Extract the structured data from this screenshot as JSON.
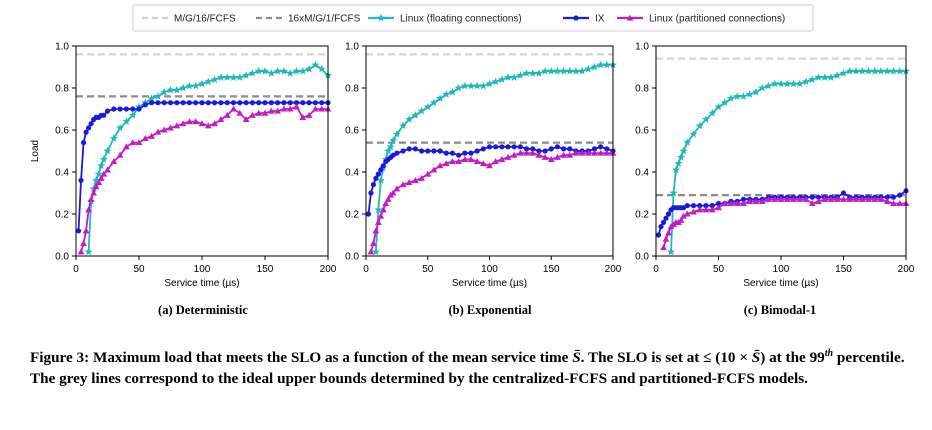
{
  "legend": [
    {
      "label": "M/G/16/FCFS",
      "color": "#d0d0d0",
      "style": "dashed",
      "marker": "none"
    },
    {
      "label": "16xM/G/1/FCFS",
      "color": "#8a8a8a",
      "style": "dashed",
      "marker": "none"
    },
    {
      "label": "Linux (floating connections)",
      "color": "#20b8b8",
      "style": "solid",
      "marker": "star"
    },
    {
      "label": "IX",
      "color": "#1a1adc",
      "style": "solid",
      "marker": "circle"
    },
    {
      "label": "Linux (partitioned connections)",
      "color": "#c41cc4",
      "style": "solid",
      "marker": "triangle"
    }
  ],
  "chart_data": [
    {
      "type": "line",
      "caption": "(a) Deterministic",
      "xlabel": "Service time (µs)",
      "ylabel": "Load",
      "xlim": [
        0,
        200
      ],
      "ylim": [
        0,
        1.0
      ],
      "xticks": [
        "0",
        "50",
        "100",
        "150",
        "200"
      ],
      "yticks": [
        "0.0",
        "0.2",
        "0.4",
        "0.6",
        "0.8",
        "1.0"
      ],
      "grid": false,
      "hlines": [
        {
          "name": "M/G/16/FCFS",
          "y": 0.96
        },
        {
          "name": "16xM/G/1/FCFS",
          "y": 0.76
        }
      ],
      "series": [
        {
          "name": "Linux (floating connections)",
          "x": [
            10,
            12,
            14,
            16,
            18,
            20,
            22,
            25,
            30,
            35,
            40,
            45,
            50,
            55,
            60,
            65,
            70,
            75,
            80,
            85,
            90,
            95,
            100,
            105,
            110,
            115,
            120,
            125,
            130,
            135,
            140,
            145,
            150,
            155,
            160,
            165,
            170,
            175,
            180,
            185,
            190,
            195,
            200
          ],
          "y": [
            0.02,
            0.26,
            0.32,
            0.36,
            0.39,
            0.43,
            0.46,
            0.5,
            0.56,
            0.61,
            0.64,
            0.67,
            0.71,
            0.73,
            0.75,
            0.76,
            0.78,
            0.79,
            0.79,
            0.8,
            0.81,
            0.81,
            0.82,
            0.83,
            0.84,
            0.85,
            0.85,
            0.85,
            0.85,
            0.86,
            0.87,
            0.88,
            0.88,
            0.87,
            0.88,
            0.88,
            0.87,
            0.88,
            0.88,
            0.89,
            0.91,
            0.89,
            0.86
          ]
        },
        {
          "name": "IX",
          "x": [
            2,
            4,
            6,
            8,
            10,
            12,
            14,
            16,
            18,
            20,
            22,
            25,
            30,
            35,
            40,
            45,
            50,
            55,
            60,
            65,
            70,
            75,
            80,
            85,
            90,
            95,
            100,
            105,
            110,
            115,
            120,
            125,
            130,
            135,
            140,
            145,
            150,
            155,
            160,
            165,
            170,
            175,
            180,
            185,
            190,
            195,
            200
          ],
          "y": [
            0.12,
            0.36,
            0.54,
            0.59,
            0.61,
            0.63,
            0.65,
            0.66,
            0.66,
            0.67,
            0.67,
            0.69,
            0.7,
            0.7,
            0.7,
            0.7,
            0.7,
            0.72,
            0.73,
            0.73,
            0.73,
            0.73,
            0.73,
            0.73,
            0.73,
            0.73,
            0.73,
            0.73,
            0.73,
            0.73,
            0.73,
            0.73,
            0.73,
            0.73,
            0.73,
            0.73,
            0.73,
            0.73,
            0.73,
            0.73,
            0.73,
            0.73,
            0.73,
            0.73,
            0.73,
            0.73,
            0.73
          ]
        },
        {
          "name": "Linux (partitioned connections)",
          "x": [
            4,
            6,
            8,
            10,
            12,
            14,
            16,
            18,
            20,
            22,
            25,
            30,
            35,
            40,
            45,
            50,
            55,
            60,
            65,
            70,
            75,
            80,
            85,
            90,
            95,
            100,
            105,
            110,
            115,
            120,
            125,
            130,
            135,
            140,
            145,
            150,
            155,
            160,
            165,
            170,
            175,
            180,
            185,
            190,
            195,
            200
          ],
          "y": [
            0.02,
            0.06,
            0.12,
            0.22,
            0.27,
            0.3,
            0.33,
            0.35,
            0.37,
            0.39,
            0.41,
            0.45,
            0.48,
            0.52,
            0.54,
            0.54,
            0.56,
            0.57,
            0.59,
            0.6,
            0.61,
            0.62,
            0.63,
            0.64,
            0.64,
            0.63,
            0.62,
            0.63,
            0.65,
            0.67,
            0.7,
            0.68,
            0.65,
            0.67,
            0.68,
            0.68,
            0.69,
            0.69,
            0.7,
            0.7,
            0.71,
            0.66,
            0.67,
            0.7,
            0.7,
            0.7
          ]
        }
      ]
    },
    {
      "type": "line",
      "caption": "(b) Exponential",
      "xlabel": "Service time (µs)",
      "ylabel": "",
      "xlim": [
        0,
        200
      ],
      "ylim": [
        0,
        1.0
      ],
      "xticks": [
        "0",
        "50",
        "100",
        "150",
        "200"
      ],
      "yticks": [
        "0.0",
        "0.2",
        "0.4",
        "0.6",
        "0.8",
        "1.0"
      ],
      "grid": false,
      "hlines": [
        {
          "name": "M/G/16/FCFS",
          "y": 0.96
        },
        {
          "name": "16xM/G/1/FCFS",
          "y": 0.54
        }
      ],
      "series": [
        {
          "name": "Linux (floating connections)",
          "x": [
            8,
            10,
            12,
            14,
            16,
            18,
            20,
            22,
            25,
            30,
            35,
            40,
            45,
            50,
            55,
            60,
            65,
            70,
            75,
            80,
            85,
            90,
            95,
            100,
            105,
            110,
            115,
            120,
            125,
            130,
            135,
            140,
            145,
            150,
            155,
            160,
            165,
            170,
            175,
            180,
            185,
            190,
            195,
            200
          ],
          "y": [
            0.02,
            0.22,
            0.36,
            0.42,
            0.46,
            0.5,
            0.52,
            0.55,
            0.58,
            0.62,
            0.65,
            0.67,
            0.69,
            0.71,
            0.73,
            0.75,
            0.77,
            0.78,
            0.8,
            0.81,
            0.81,
            0.81,
            0.81,
            0.82,
            0.83,
            0.84,
            0.85,
            0.85,
            0.86,
            0.87,
            0.87,
            0.87,
            0.88,
            0.88,
            0.88,
            0.88,
            0.88,
            0.88,
            0.88,
            0.89,
            0.9,
            0.91,
            0.91,
            0.91
          ]
        },
        {
          "name": "IX",
          "x": [
            2,
            4,
            6,
            8,
            10,
            12,
            14,
            16,
            18,
            20,
            22,
            25,
            30,
            35,
            40,
            45,
            50,
            55,
            60,
            65,
            70,
            75,
            80,
            85,
            90,
            95,
            100,
            105,
            110,
            115,
            120,
            125,
            130,
            135,
            140,
            145,
            150,
            155,
            160,
            165,
            170,
            175,
            180,
            185,
            190,
            195,
            200
          ],
          "y": [
            0.2,
            0.3,
            0.34,
            0.37,
            0.39,
            0.41,
            0.43,
            0.45,
            0.46,
            0.47,
            0.48,
            0.49,
            0.5,
            0.51,
            0.51,
            0.5,
            0.5,
            0.5,
            0.5,
            0.49,
            0.49,
            0.48,
            0.49,
            0.49,
            0.5,
            0.51,
            0.52,
            0.52,
            0.52,
            0.52,
            0.52,
            0.52,
            0.51,
            0.51,
            0.5,
            0.5,
            0.51,
            0.52,
            0.51,
            0.51,
            0.5,
            0.5,
            0.5,
            0.51,
            0.52,
            0.51,
            0.5
          ]
        },
        {
          "name": "Linux (partitioned connections)",
          "x": [
            4,
            6,
            8,
            10,
            12,
            14,
            16,
            18,
            20,
            22,
            25,
            30,
            35,
            40,
            45,
            50,
            55,
            60,
            65,
            70,
            75,
            80,
            85,
            90,
            95,
            100,
            105,
            110,
            115,
            120,
            125,
            130,
            135,
            140,
            145,
            150,
            155,
            160,
            165,
            170,
            175,
            180,
            185,
            190,
            195,
            200
          ],
          "y": [
            0.02,
            0.06,
            0.12,
            0.16,
            0.19,
            0.22,
            0.25,
            0.27,
            0.29,
            0.3,
            0.32,
            0.34,
            0.35,
            0.36,
            0.37,
            0.39,
            0.41,
            0.43,
            0.44,
            0.45,
            0.45,
            0.46,
            0.46,
            0.45,
            0.44,
            0.43,
            0.45,
            0.46,
            0.47,
            0.48,
            0.49,
            0.49,
            0.49,
            0.48,
            0.47,
            0.46,
            0.47,
            0.48,
            0.48,
            0.49,
            0.49,
            0.49,
            0.49,
            0.49,
            0.49,
            0.49
          ]
        }
      ]
    },
    {
      "type": "line",
      "caption": "(c) Bimodal-1",
      "xlabel": "Service time (µs)",
      "ylabel": "",
      "xlim": [
        0,
        200
      ],
      "ylim": [
        0,
        1.0
      ],
      "xticks": [
        "0",
        "50",
        "100",
        "150",
        "200"
      ],
      "yticks": [
        "0.0",
        "0.2",
        "0.4",
        "0.6",
        "0.8",
        "1.0"
      ],
      "grid": false,
      "hlines": [
        {
          "name": "M/G/16/FCFS",
          "y": 0.94
        },
        {
          "name": "16xM/G/1/FCFS",
          "y": 0.29
        }
      ],
      "series": [
        {
          "name": "Linux (floating connections)",
          "x": [
            12,
            14,
            16,
            18,
            20,
            22,
            25,
            30,
            35,
            40,
            45,
            50,
            55,
            60,
            65,
            70,
            75,
            80,
            85,
            90,
            95,
            100,
            105,
            110,
            115,
            120,
            125,
            130,
            135,
            140,
            145,
            150,
            155,
            160,
            165,
            170,
            175,
            180,
            185,
            190,
            195,
            200
          ],
          "y": [
            0.02,
            0.3,
            0.41,
            0.44,
            0.47,
            0.5,
            0.54,
            0.58,
            0.62,
            0.65,
            0.68,
            0.71,
            0.73,
            0.75,
            0.76,
            0.76,
            0.77,
            0.78,
            0.8,
            0.81,
            0.82,
            0.82,
            0.82,
            0.82,
            0.82,
            0.83,
            0.84,
            0.85,
            0.85,
            0.85,
            0.86,
            0.87,
            0.88,
            0.88,
            0.88,
            0.88,
            0.88,
            0.88,
            0.88,
            0.88,
            0.88,
            0.88
          ]
        },
        {
          "name": "IX",
          "x": [
            2,
            4,
            6,
            8,
            10,
            12,
            14,
            16,
            18,
            20,
            22,
            25,
            30,
            35,
            40,
            45,
            50,
            55,
            60,
            65,
            70,
            75,
            80,
            85,
            90,
            95,
            100,
            105,
            110,
            115,
            120,
            125,
            130,
            135,
            140,
            145,
            150,
            155,
            160,
            165,
            170,
            175,
            180,
            185,
            190,
            195,
            200
          ],
          "y": [
            0.1,
            0.14,
            0.16,
            0.18,
            0.2,
            0.22,
            0.23,
            0.23,
            0.23,
            0.23,
            0.23,
            0.24,
            0.24,
            0.24,
            0.24,
            0.24,
            0.25,
            0.25,
            0.26,
            0.26,
            0.27,
            0.27,
            0.27,
            0.27,
            0.28,
            0.28,
            0.28,
            0.28,
            0.28,
            0.28,
            0.28,
            0.28,
            0.28,
            0.28,
            0.28,
            0.28,
            0.3,
            0.28,
            0.28,
            0.28,
            0.28,
            0.28,
            0.28,
            0.28,
            0.28,
            0.29,
            0.31
          ]
        },
        {
          "name": "Linux (partitioned connections)",
          "x": [
            6,
            8,
            10,
            12,
            14,
            16,
            18,
            20,
            22,
            25,
            30,
            35,
            40,
            45,
            50,
            55,
            60,
            65,
            70,
            75,
            80,
            85,
            90,
            95,
            100,
            105,
            110,
            115,
            120,
            125,
            130,
            135,
            140,
            145,
            150,
            155,
            160,
            165,
            170,
            175,
            180,
            185,
            190,
            195,
            200
          ],
          "y": [
            0.04,
            0.08,
            0.11,
            0.14,
            0.15,
            0.16,
            0.16,
            0.17,
            0.19,
            0.2,
            0.21,
            0.22,
            0.22,
            0.22,
            0.23,
            0.25,
            0.25,
            0.25,
            0.25,
            0.26,
            0.26,
            0.26,
            0.27,
            0.27,
            0.27,
            0.27,
            0.27,
            0.27,
            0.27,
            0.25,
            0.26,
            0.27,
            0.27,
            0.27,
            0.27,
            0.27,
            0.27,
            0.27,
            0.27,
            0.27,
            0.27,
            0.26,
            0.25,
            0.25,
            0.25
          ]
        }
      ]
    }
  ],
  "caption": {
    "lead": "Figure 3: Maximum load that meets the SLO as a function of the mean service time ",
    "symbol": "S̄",
    "mid1": ". The SLO is set at ≤ (10 × ",
    "mid2": ") at the 99",
    "sup": "th",
    "tail": " percentile. The grey lines correspond to the ideal upper bounds determined by the centralized-FCFS and partitioned-FCFS models."
  }
}
